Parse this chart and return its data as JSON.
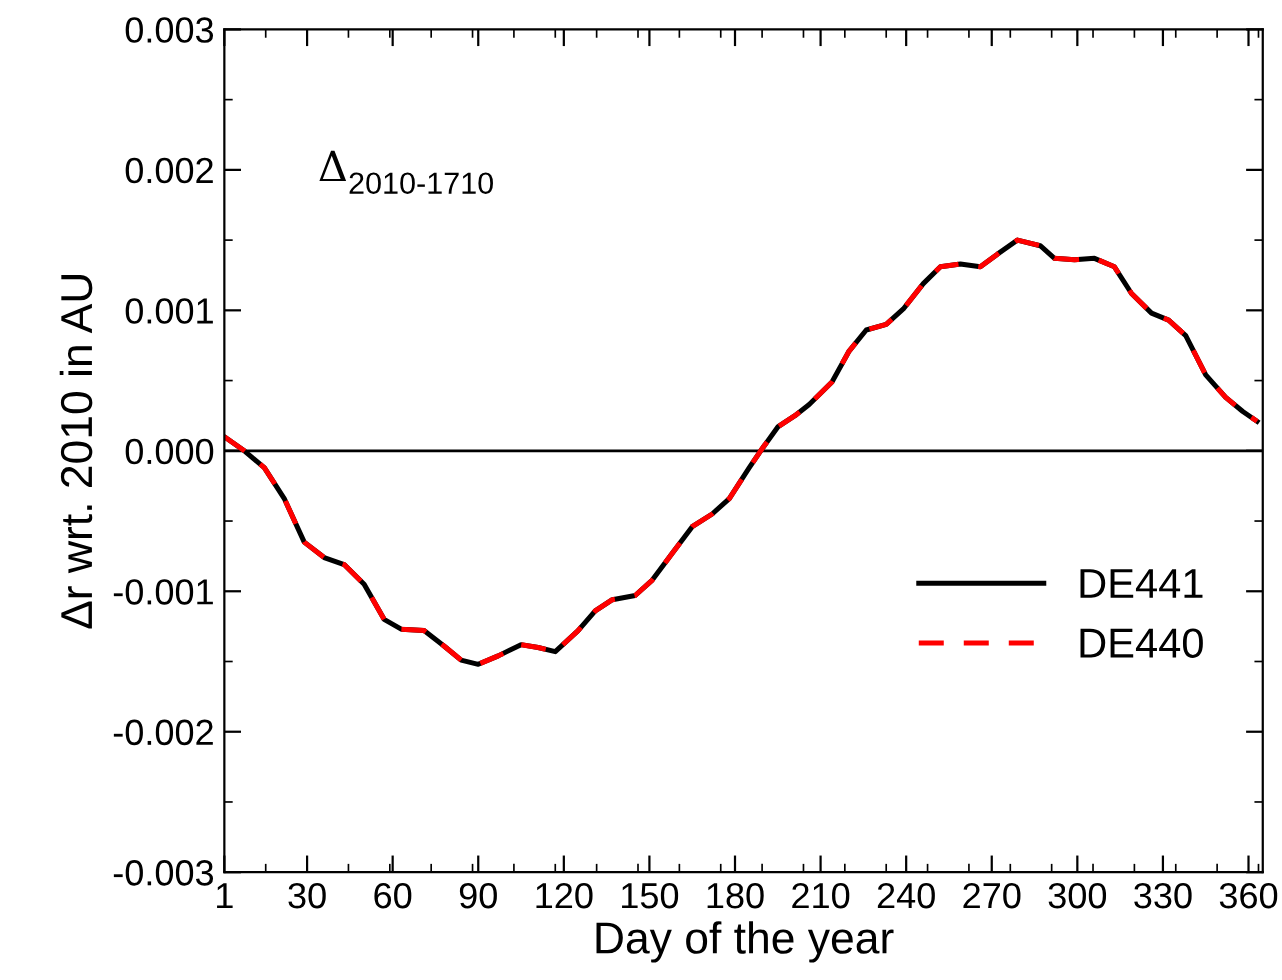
{
  "chart_data": {
    "type": "line",
    "xlabel": "Day of the year",
    "ylabel": "Δr wrt. 2010 in AU",
    "annotations": [
      "Δ$_{2010-1710}$"
    ],
    "x": [
      1,
      8,
      15,
      22,
      29,
      36,
      43,
      50,
      57,
      63,
      71,
      78,
      84,
      90,
      97,
      105,
      111,
      117,
      125,
      131,
      137,
      145,
      151,
      158,
      165,
      172,
      178,
      185,
      189,
      195,
      201,
      206,
      214,
      220,
      226,
      233,
      239,
      246,
      252,
      259,
      266,
      272,
      279,
      287,
      292,
      299,
      306,
      313,
      319,
      326,
      332,
      338,
      345,
      352,
      358,
      363
    ],
    "series": [
      {
        "name": "DE441",
        "color": "#000000",
        "line_style": "solid",
        "values": [
          0.0001,
          0.0,
          -0.00012,
          -0.00034,
          -0.00065,
          -0.00076,
          -0.00081,
          -0.00095,
          -0.0012,
          -0.00127,
          -0.00128,
          -0.00139,
          -0.00149,
          -0.00152,
          -0.00146,
          -0.00138,
          -0.0014,
          -0.00143,
          -0.00128,
          -0.00114,
          -0.00106,
          -0.00103,
          -0.00092,
          -0.00073,
          -0.00054,
          -0.00045,
          -0.00034,
          -0.00012,
          0.0,
          0.00017,
          0.00025,
          0.00033,
          0.00049,
          0.00071,
          0.00086,
          0.0009,
          0.00101,
          0.00119,
          0.00131,
          0.00133,
          0.00131,
          0.0014,
          0.0015,
          0.00146,
          0.00137,
          0.00136,
          0.00137,
          0.00131,
          0.00112,
          0.00098,
          0.00093,
          0.00082,
          0.00054,
          0.00038,
          0.00028,
          0.00021
        ]
      },
      {
        "name": "DE440",
        "color": "#ff0000",
        "line_style": "dashed",
        "values": [
          0.0001,
          0.0,
          -0.00012,
          -0.00034,
          -0.00065,
          -0.00076,
          -0.00081,
          -0.00095,
          -0.0012,
          -0.00127,
          -0.00128,
          -0.00139,
          -0.00149,
          -0.00152,
          -0.00146,
          -0.00138,
          -0.0014,
          -0.00143,
          -0.00128,
          -0.00114,
          -0.00106,
          -0.00103,
          -0.00092,
          -0.00073,
          -0.00054,
          -0.00045,
          -0.00034,
          -0.00012,
          0.0,
          0.00017,
          0.00025,
          0.00033,
          0.00049,
          0.00071,
          0.00086,
          0.0009,
          0.00101,
          0.00119,
          0.00131,
          0.00133,
          0.00131,
          0.0014,
          0.0015,
          0.00146,
          0.00137,
          0.00136,
          0.00137,
          0.00131,
          0.00112,
          0.00098,
          0.00093,
          0.00082,
          0.00054,
          0.00038,
          0.00028,
          0.00021
        ]
      }
    ],
    "xlim": [
      1,
      365
    ],
    "xticks": [
      1,
      30,
      60,
      90,
      120,
      150,
      180,
      210,
      240,
      270,
      300,
      330,
      360
    ],
    "ylim": [
      -0.003,
      0.003
    ],
    "yticks": [
      {
        "value": -0.003,
        "label": "-0.003"
      },
      {
        "value": -0.002,
        "label": "-0.002"
      },
      {
        "value": -0.001,
        "label": "-0.001"
      },
      {
        "value": 0,
        "label": "0.000"
      },
      {
        "value": 0.001,
        "label": "0.001"
      },
      {
        "value": 0.002,
        "label": "0.002"
      },
      {
        "value": 0.003,
        "label": "0.003"
      }
    ],
    "ref_lines": [
      {
        "axis": "y",
        "value": 0,
        "color": "#000000",
        "line_style": "solid"
      }
    ],
    "legend": "lower right",
    "grid": false,
    "marker": "none"
  }
}
